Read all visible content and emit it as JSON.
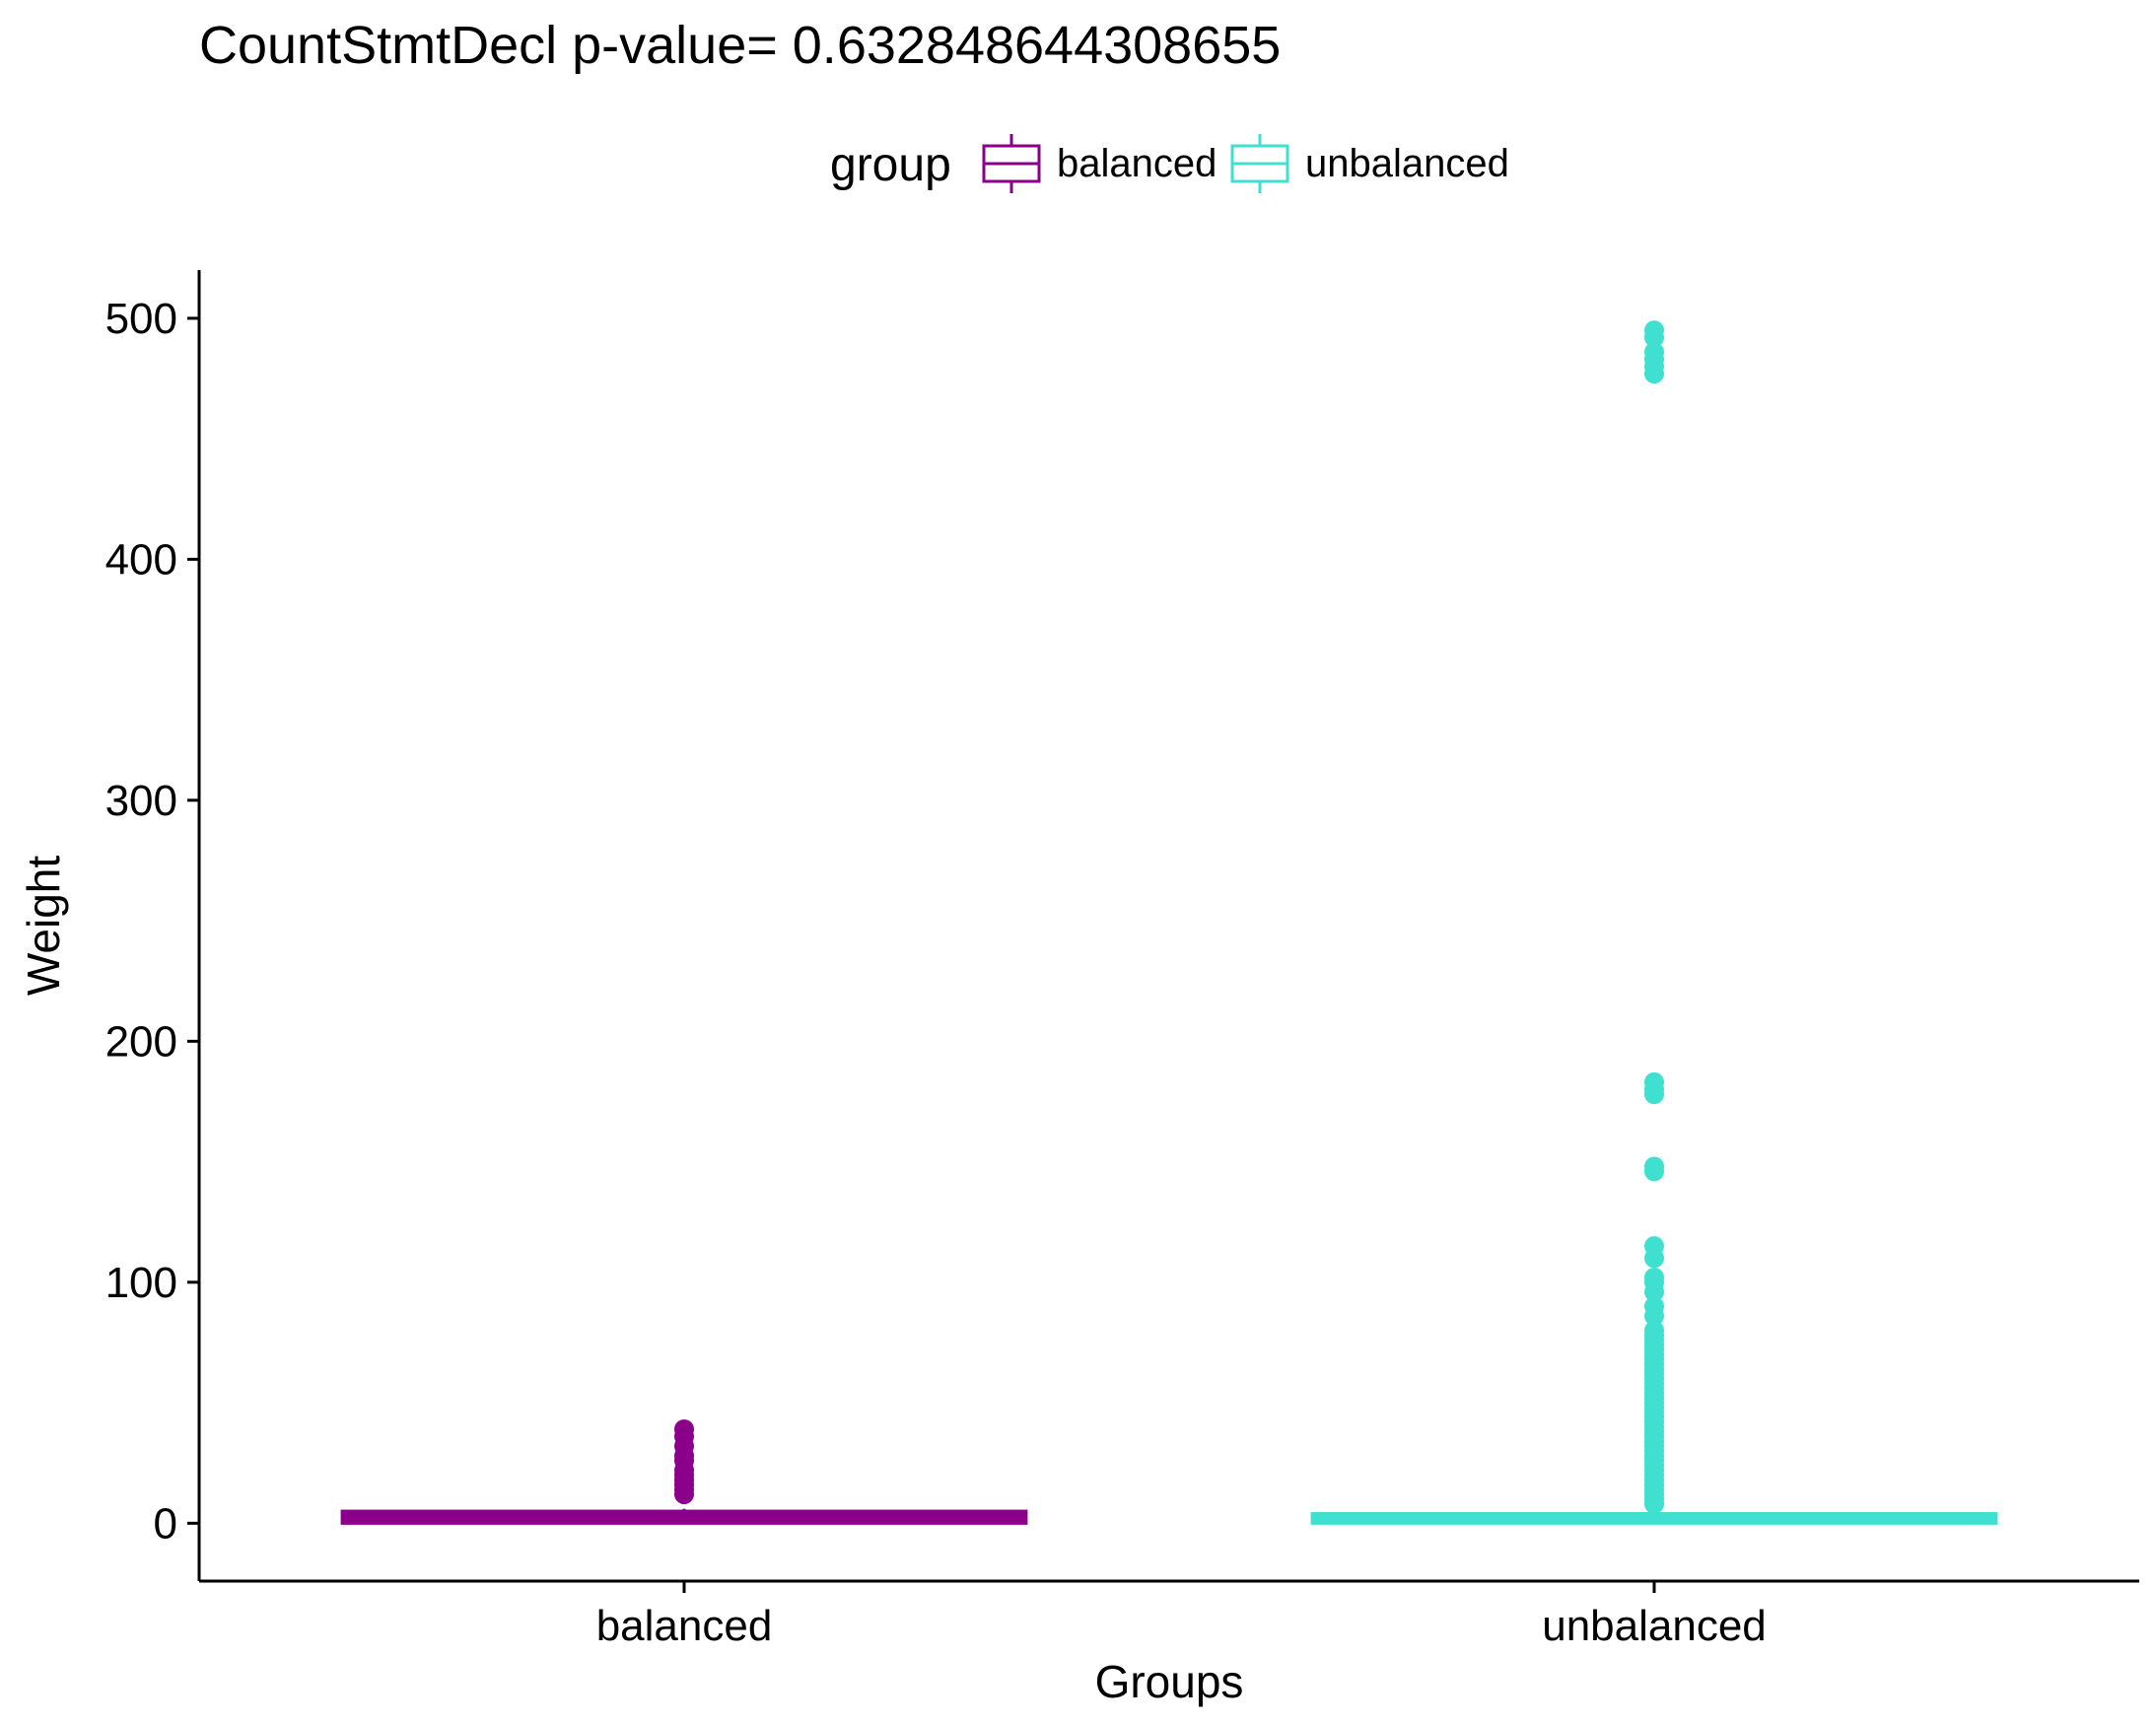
{
  "chart_data": {
    "type": "box",
    "title": "CountStmtDecl  p-value= 0.632848644308655",
    "xlabel": "Groups",
    "ylabel": "Weight",
    "ylim": [
      -24,
      520
    ],
    "yticks": [
      0,
      100,
      200,
      300,
      400,
      500
    ],
    "categories": [
      "balanced",
      "unbalanced"
    ],
    "legend": {
      "title": "group",
      "position": "top",
      "entries": [
        "balanced",
        "unbalanced"
      ]
    },
    "grid": false,
    "series": [
      {
        "name": "balanced",
        "color": "#8B008B",
        "q1": 1,
        "median": 2,
        "q3": 4,
        "whisker_low": 1,
        "whisker_high": 6,
        "outliers": [
          12,
          14,
          16,
          18,
          20,
          22,
          26,
          28,
          32,
          36,
          39
        ]
      },
      {
        "name": "unbalanced",
        "color": "#40E0D0",
        "q1": 1,
        "median": 2,
        "q3": 3,
        "whisker_low": 1,
        "whisker_high": 5,
        "outliers": [
          8,
          10,
          12,
          14,
          16,
          18,
          20,
          22,
          24,
          26,
          28,
          30,
          32,
          34,
          36,
          38,
          40,
          42,
          44,
          46,
          48,
          50,
          52,
          54,
          56,
          58,
          60,
          62,
          64,
          66,
          68,
          70,
          72,
          74,
          76,
          78,
          80,
          86,
          90,
          96,
          100,
          102,
          110,
          115,
          146,
          148,
          178,
          180,
          183,
          477,
          480,
          483,
          486,
          492,
          495
        ]
      }
    ]
  }
}
